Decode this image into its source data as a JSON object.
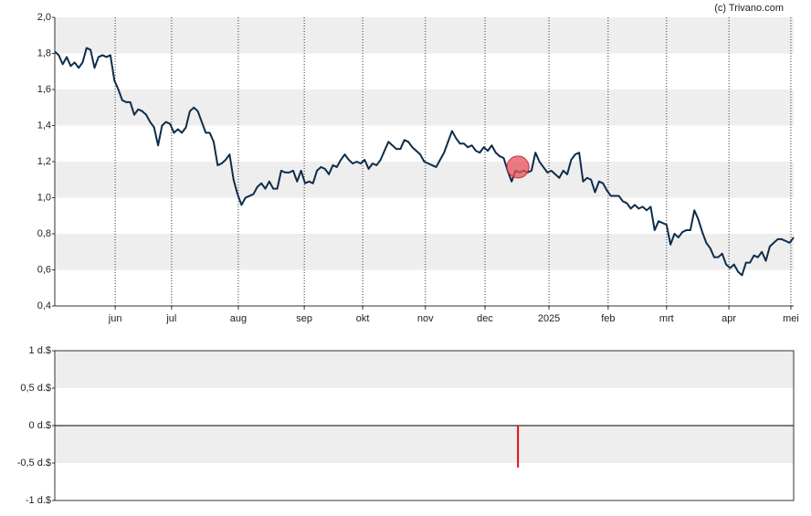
{
  "credit": "(c) Trivano.com",
  "chart_data": [
    {
      "type": "line",
      "color": "#0e2d4a",
      "values": [
        1.81,
        1.79,
        1.74,
        1.78,
        1.73,
        1.75,
        1.72,
        1.75,
        1.83,
        1.82,
        1.72,
        1.78,
        1.79,
        1.78,
        1.79,
        1.65,
        1.6,
        1.54,
        1.53,
        1.53,
        1.46,
        1.49,
        1.48,
        1.46,
        1.42,
        1.39,
        1.29,
        1.4,
        1.42,
        1.41,
        1.36,
        1.38,
        1.36,
        1.39,
        1.48,
        1.5,
        1.48,
        1.42,
        1.36,
        1.36,
        1.31,
        1.18,
        1.19,
        1.21,
        1.24,
        1.1,
        1.02,
        0.96,
        1.0,
        1.01,
        1.02,
        1.06,
        1.08,
        1.05,
        1.09,
        1.05,
        1.05,
        1.15,
        1.14,
        1.14,
        1.15,
        1.09,
        1.15,
        1.08,
        1.09,
        1.08,
        1.15,
        1.17,
        1.16,
        1.13,
        1.18,
        1.17,
        1.21,
        1.24,
        1.21,
        1.19,
        1.2,
        1.19,
        1.21,
        1.16,
        1.19,
        1.18,
        1.21,
        1.26,
        1.31,
        1.29,
        1.27,
        1.27,
        1.32,
        1.31,
        1.28,
        1.26,
        1.24,
        1.2,
        1.19,
        1.18,
        1.17,
        1.21,
        1.25,
        1.31,
        1.37,
        1.33,
        1.3,
        1.3,
        1.28,
        1.29,
        1.26,
        1.25,
        1.28,
        1.26,
        1.29,
        1.25,
        1.23,
        1.22,
        1.15,
        1.09,
        1.15,
        1.14,
        1.15,
        1.14,
        1.15,
        1.25,
        1.2,
        1.17,
        1.14,
        1.15,
        1.13,
        1.11,
        1.15,
        1.13,
        1.21,
        1.24,
        1.25,
        1.09,
        1.11,
        1.1,
        1.03,
        1.09,
        1.08,
        1.04,
        1.01,
        1.01,
        1.01,
        0.98,
        0.97,
        0.94,
        0.96,
        0.94,
        0.95,
        0.93,
        0.95,
        0.82,
        0.87,
        0.86,
        0.85,
        0.74,
        0.8,
        0.78,
        0.81,
        0.82,
        0.82,
        0.93,
        0.88,
        0.81,
        0.75,
        0.72,
        0.67,
        0.67,
        0.69,
        0.63,
        0.61,
        0.63,
        0.59,
        0.57,
        0.64,
        0.64,
        0.68,
        0.67,
        0.7,
        0.65,
        0.73,
        0.75,
        0.77,
        0.77,
        0.76,
        0.75,
        0.78
      ],
      "xlim": [
        0,
        186
      ],
      "xticks": [
        {
          "value": 15.2,
          "label": "jun"
        },
        {
          "value": 29.4,
          "label": "jul"
        },
        {
          "value": 46.2,
          "label": "aug"
        },
        {
          "value": 62.8,
          "label": "sep"
        },
        {
          "value": 77.5,
          "label": "okt"
        },
        {
          "value": 93.3,
          "label": "nov"
        },
        {
          "value": 108.3,
          "label": "dec"
        },
        {
          "value": 124.4,
          "label": "2025"
        },
        {
          "value": 139.3,
          "label": "feb"
        },
        {
          "value": 154,
          "label": "mrt"
        },
        {
          "value": 169.7,
          "label": "apr"
        },
        {
          "value": 185.3,
          "label": "mei"
        }
      ],
      "ylim": [
        0.4,
        2.0
      ],
      "yticks": [
        {
          "value": 0.4,
          "label": "0,4"
        },
        {
          "value": 0.6,
          "label": "0,6"
        },
        {
          "value": 0.8,
          "label": "0,8"
        },
        {
          "value": 1.0,
          "label": "1,0"
        },
        {
          "value": 1.2,
          "label": "1,2"
        },
        {
          "value": 1.4,
          "label": "1,4"
        },
        {
          "value": 1.6,
          "label": "1,6"
        },
        {
          "value": 1.8,
          "label": "1,8"
        },
        {
          "value": 2.0,
          "label": "2,0"
        }
      ],
      "marker": {
        "x": 116.6,
        "value": 1.17,
        "color": "#e8505b"
      },
      "grid": true
    },
    {
      "type": "bar",
      "color": "#e01010",
      "x": [
        116.6
      ],
      "values": [
        -0.56
      ],
      "xlim": [
        0,
        186
      ],
      "ylim": [
        -1,
        1
      ],
      "yticks": [
        {
          "value": -1,
          "label": "-1 d.$"
        },
        {
          "value": -0.5,
          "label": "-0,5 d.$"
        },
        {
          "value": 0,
          "label": "0 d.$"
        },
        {
          "value": 0.5,
          "label": "0,5 d.$"
        },
        {
          "value": 1,
          "label": "1 d.$"
        }
      ],
      "grid": true
    }
  ]
}
